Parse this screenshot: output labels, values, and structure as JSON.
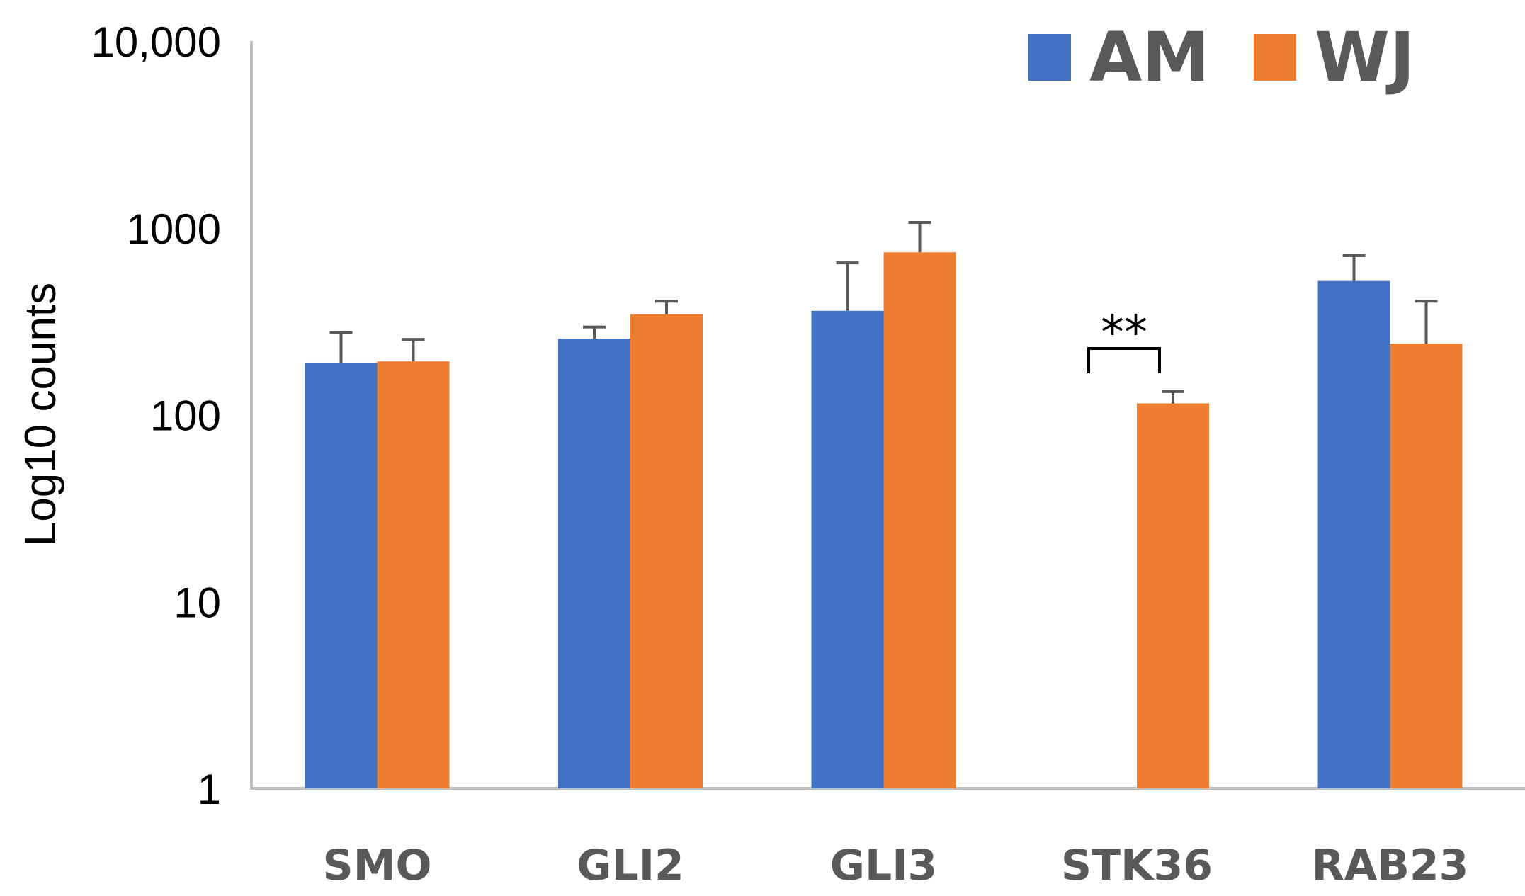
{
  "chart_data": {
    "type": "bar",
    "scale": "log10",
    "title": "",
    "xlabel": "",
    "ylabel": "Log10 counts",
    "ylim": [
      1,
      10000
    ],
    "yticks": [
      1,
      10,
      100,
      1000,
      10000
    ],
    "ytick_labels": [
      "1",
      "10",
      "100",
      "1000",
      "10,000"
    ],
    "categories": [
      "SMO",
      "GLI2",
      "GLI3",
      "STK36",
      "RAB23"
    ],
    "series": [
      {
        "name": "AM",
        "color": "#4472C4",
        "values": [
          190,
          255,
          360,
          null,
          520
        ],
        "errors": [
          85,
          40,
          290,
          null,
          190
        ]
      },
      {
        "name": "WJ",
        "color": "#ED7D31",
        "values": [
          193,
          345,
          740,
          115,
          240
        ],
        "errors": [
          60,
          60,
          330,
          18,
          165
        ]
      }
    ],
    "legend": {
      "position": "top-right",
      "entries": [
        "AM",
        "WJ"
      ]
    },
    "annotations": [
      {
        "text": "**",
        "category": "STK36"
      }
    ]
  }
}
